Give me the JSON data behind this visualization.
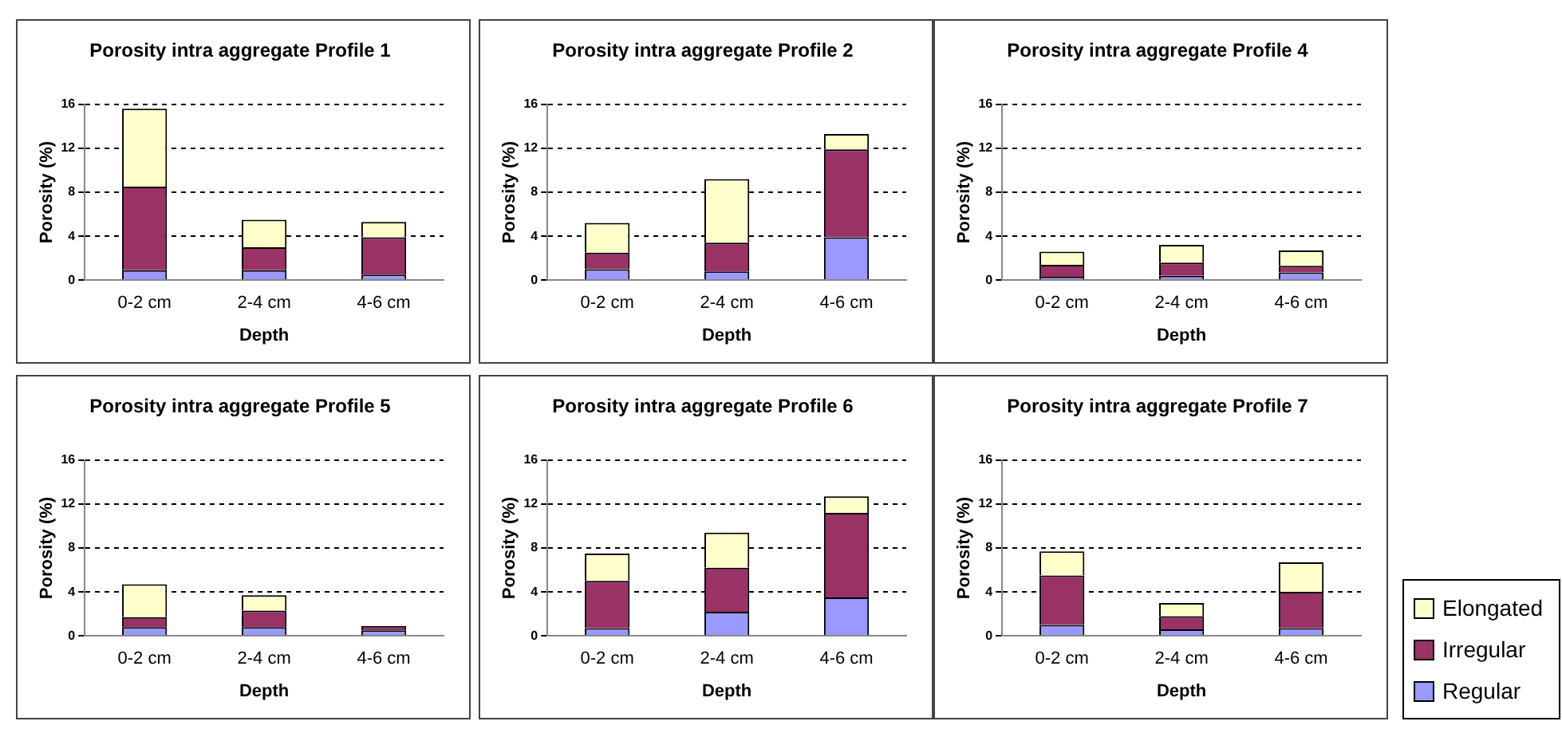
{
  "chart_data": [
    {
      "type": "bar",
      "title": "Porosity intra aggregate Profile 1",
      "xlabel": "Depth",
      "ylabel": "Porosity (%)",
      "categories": [
        "0-2 cm",
        "2-4 cm",
        "4-6 cm"
      ],
      "stacked": true,
      "ylim": [
        0,
        16
      ],
      "yticks": [
        0,
        4,
        8,
        12,
        16
      ],
      "grid": "y",
      "series": [
        {
          "color": "#9999ff",
          "values": [
            0.9,
            0.9,
            0.5
          ]
        },
        {
          "color": "#993366",
          "values": [
            7.6,
            2.1,
            3.4
          ]
        },
        {
          "color": "#ffffcc",
          "values": [
            7.1,
            2.5,
            1.4
          ]
        }
      ]
    },
    {
      "type": "bar",
      "title": "Porosity intra aggregate Profile 2",
      "xlabel": "Depth",
      "ylabel": "Porosity (%)",
      "categories": [
        "0-2 cm",
        "2-4 cm",
        "4-6 cm"
      ],
      "stacked": true,
      "ylim": [
        0,
        16
      ],
      "yticks": [
        0,
        4,
        8,
        12,
        16
      ],
      "grid": "y",
      "series": [
        {
          "color": "#9999ff",
          "values": [
            1.0,
            0.8,
            3.9
          ]
        },
        {
          "color": "#993366",
          "values": [
            1.5,
            2.6,
            8.0
          ]
        },
        {
          "color": "#ffffcc",
          "values": [
            2.7,
            5.8,
            1.4
          ]
        }
      ]
    },
    {
      "type": "bar",
      "title": "Porosity intra aggregate Profile 4",
      "xlabel": "Depth",
      "ylabel": "Porosity (%)",
      "categories": [
        "0-2 cm",
        "2-4 cm",
        "4-6 cm"
      ],
      "stacked": true,
      "ylim": [
        0,
        16
      ],
      "yticks": [
        0,
        4,
        8,
        12,
        16
      ],
      "grid": "y",
      "series": [
        {
          "color": "#9999ff",
          "values": [
            0.3,
            0.4,
            0.7
          ]
        },
        {
          "color": "#993366",
          "values": [
            1.1,
            1.2,
            0.6
          ]
        },
        {
          "color": "#ffffcc",
          "values": [
            1.2,
            1.6,
            1.4
          ]
        }
      ]
    },
    {
      "type": "bar",
      "title": "Porosity intra aggregate Profile 5",
      "xlabel": "Depth",
      "ylabel": "Porosity (%)",
      "categories": [
        "0-2 cm",
        "2-4 cm",
        "4-6 cm"
      ],
      "stacked": true,
      "ylim": [
        0,
        16
      ],
      "yticks": [
        0,
        4,
        8,
        12,
        16
      ],
      "grid": "y",
      "series": [
        {
          "color": "#9999ff",
          "values": [
            0.8,
            0.8,
            0.5
          ]
        },
        {
          "color": "#993366",
          "values": [
            0.9,
            1.5,
            0.4
          ]
        },
        {
          "color": "#ffffcc",
          "values": [
            3.0,
            1.4,
            null
          ]
        }
      ]
    },
    {
      "type": "bar",
      "title": "Porosity intra aggregate Profile 6",
      "xlabel": "Depth",
      "ylabel": "Porosity (%)",
      "categories": [
        "0-2 cm",
        "2-4 cm",
        "4-6 cm"
      ],
      "stacked": true,
      "ylim": [
        0,
        16
      ],
      "yticks": [
        0,
        4,
        8,
        12,
        16
      ],
      "grid": "y",
      "series": [
        {
          "color": "#9999ff",
          "values": [
            0.7,
            2.2,
            3.5
          ]
        },
        {
          "color": "#993366",
          "values": [
            4.3,
            4.0,
            7.7
          ]
        },
        {
          "color": "#ffffcc",
          "values": [
            2.5,
            3.2,
            1.5
          ]
        }
      ]
    },
    {
      "type": "bar",
      "title": "Porosity intra aggregate Profile 7",
      "xlabel": "Depth",
      "ylabel": "Porosity (%)",
      "categories": [
        "0-2 cm",
        "2-4 cm",
        "4-6 cm"
      ],
      "stacked": true,
      "ylim": [
        0,
        16
      ],
      "yticks": [
        0,
        4,
        8,
        12,
        16
      ],
      "grid": "y",
      "legend": "right",
      "series": [
        {
          "name": "Regular",
          "color": "#9999ff",
          "values": [
            1.0,
            0.6,
            0.7
          ]
        },
        {
          "name": "Irregular",
          "color": "#993366",
          "values": [
            4.5,
            1.2,
            3.3
          ]
        },
        {
          "name": "Elongated",
          "color": "#ffffcc",
          "values": [
            2.2,
            1.2,
            2.7
          ]
        }
      ]
    }
  ]
}
